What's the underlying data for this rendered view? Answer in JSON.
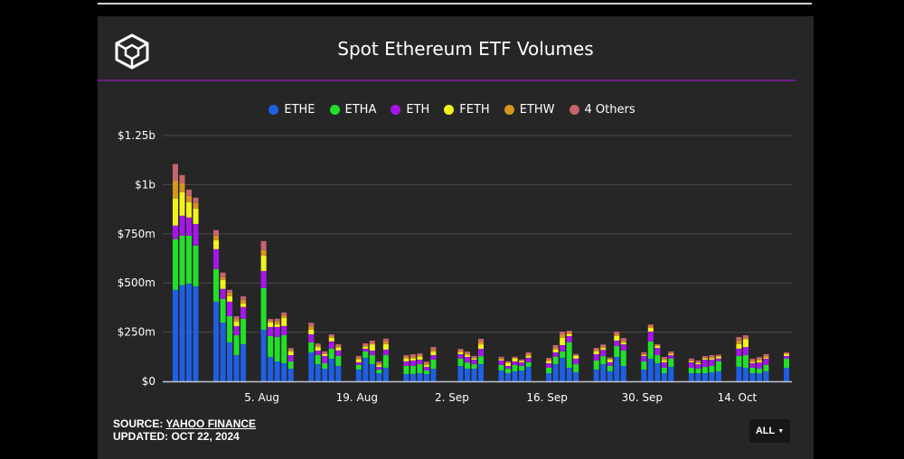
{
  "title": "Spot Ethereum ETF Volumes",
  "footer": {
    "source_label": "SOURCE:",
    "source_link": "YAHOO FINANCE",
    "updated": "UPDATED: OCT 22, 2024"
  },
  "range_button": {
    "label": "ALL",
    "icon": "caret-down-icon"
  },
  "logo": "cube-logo",
  "chart_data": {
    "type": "bar",
    "stacked": true,
    "title": "Spot Ethereum ETF Volumes",
    "legend_position": "top",
    "grid": true,
    "ylim": [
      0,
      1250
    ],
    "y_ticks": [
      {
        "value": 0,
        "label": "$0"
      },
      {
        "value": 250,
        "label": "$250m"
      },
      {
        "value": 500,
        "label": "$500m"
      },
      {
        "value": 750,
        "label": "$750m"
      },
      {
        "value": 1000,
        "label": "$1b"
      },
      {
        "value": 1250,
        "label": "$1.25b"
      }
    ],
    "x_ticks": [
      {
        "date": "2024-08-05",
        "label": "5. Aug"
      },
      {
        "date": "2024-08-19",
        "label": "19. Aug"
      },
      {
        "date": "2024-09-02",
        "label": "2. Sep"
      },
      {
        "date": "2024-09-16",
        "label": "16. Sep"
      },
      {
        "date": "2024-09-30",
        "label": "30. Sep"
      },
      {
        "date": "2024-10-14",
        "label": "14. Oct"
      }
    ],
    "x_range": [
      "2024-07-23",
      "2024-10-21"
    ],
    "dates": [
      "2024-07-23",
      "2024-07-24",
      "2024-07-25",
      "2024-07-26",
      "2024-07-29",
      "2024-07-30",
      "2024-07-31",
      "2024-08-01",
      "2024-08-02",
      "2024-08-05",
      "2024-08-06",
      "2024-08-07",
      "2024-08-08",
      "2024-08-09",
      "2024-08-12",
      "2024-08-13",
      "2024-08-14",
      "2024-08-15",
      "2024-08-16",
      "2024-08-19",
      "2024-08-20",
      "2024-08-21",
      "2024-08-22",
      "2024-08-23",
      "2024-08-26",
      "2024-08-27",
      "2024-08-28",
      "2024-08-29",
      "2024-08-30",
      "2024-09-03",
      "2024-09-04",
      "2024-09-05",
      "2024-09-06",
      "2024-09-09",
      "2024-09-10",
      "2024-09-11",
      "2024-09-12",
      "2024-09-13",
      "2024-09-16",
      "2024-09-17",
      "2024-09-18",
      "2024-09-19",
      "2024-09-20",
      "2024-09-23",
      "2024-09-24",
      "2024-09-25",
      "2024-09-26",
      "2024-09-27",
      "2024-09-30",
      "2024-10-01",
      "2024-10-02",
      "2024-10-03",
      "2024-10-04",
      "2024-10-07",
      "2024-10-08",
      "2024-10-09",
      "2024-10-10",
      "2024-10-11",
      "2024-10-14",
      "2024-10-15",
      "2024-10-16",
      "2024-10-17",
      "2024-10-18",
      "2024-10-21"
    ],
    "unit": "USD millions",
    "series": [
      {
        "name": "ETHE",
        "color": "#1f5fe0",
        "values": [
          465,
          488,
          497,
          483,
          405,
          299,
          198,
          133,
          189,
          262,
          124,
          101,
          92,
          64,
          147,
          87,
          64,
          115,
          78,
          60,
          120,
          87,
          41,
          69,
          37,
          37,
          41,
          37,
          64,
          78,
          64,
          64,
          87,
          55,
          41,
          51,
          55,
          74,
          41,
          87,
          120,
          69,
          46,
          60,
          87,
          51,
          124,
          78,
          60,
          115,
          92,
          41,
          74,
          41,
          41,
          41,
          46,
          51,
          74,
          69,
          41,
          41,
          51,
          69
        ]
      },
      {
        "name": "ETHA",
        "color": "#22e02a",
        "values": [
          258,
          253,
          244,
          207,
          166,
          120,
          133,
          101,
          129,
          212,
          106,
          124,
          143,
          37,
          51,
          46,
          28,
          51,
          51,
          23,
          32,
          46,
          18,
          64,
          41,
          41,
          46,
          18,
          46,
          37,
          32,
          23,
          41,
          28,
          23,
          32,
          23,
          23,
          28,
          37,
          32,
          129,
          41,
          46,
          41,
          28,
          55,
          78,
          41,
          87,
          41,
          28,
          41,
          28,
          23,
          32,
          32,
          51,
          55,
          64,
          28,
          23,
          32,
          46
        ]
      },
      {
        "name": "ETH",
        "color": "#a516e8",
        "values": [
          69,
          101,
          92,
          110,
          101,
          51,
          74,
          46,
          60,
          87,
          46,
          51,
          46,
          32,
          41,
          23,
          37,
          37,
          28,
          14,
          14,
          23,
          14,
          28,
          23,
          28,
          23,
          18,
          23,
          23,
          28,
          23,
          37,
          23,
          14,
          18,
          18,
          23,
          23,
          23,
          32,
          32,
          28,
          32,
          32,
          18,
          28,
          32,
          28,
          51,
          37,
          28,
          18,
          28,
          23,
          37,
          32,
          14,
          37,
          41,
          23,
          32,
          32,
          14
        ]
      },
      {
        "name": "FETH",
        "color": "#f2f21c",
        "values": [
          138,
          120,
          78,
          78,
          46,
          46,
          28,
          23,
          18,
          78,
          23,
          14,
          41,
          18,
          23,
          18,
          9,
          18,
          14,
          14,
          9,
          32,
          9,
          28,
          14,
          9,
          14,
          9,
          18,
          9,
          9,
          5,
          23,
          5,
          14,
          14,
          5,
          9,
          9,
          14,
          37,
          9,
          14,
          14,
          9,
          14,
          23,
          9,
          5,
          18,
          9,
          9,
          5,
          5,
          5,
          5,
          5,
          9,
          23,
          41,
          5,
          9,
          5,
          9
        ]
      },
      {
        "name": "ETHW",
        "color": "#d4961c",
        "values": [
          92,
          46,
          32,
          28,
          23,
          14,
          18,
          14,
          18,
          28,
          9,
          14,
          14,
          9,
          18,
          9,
          5,
          9,
          9,
          9,
          9,
          5,
          9,
          14,
          9,
          9,
          9,
          9,
          9,
          9,
          9,
          5,
          14,
          5,
          5,
          5,
          5,
          9,
          9,
          9,
          18,
          9,
          5,
          9,
          9,
          5,
          9,
          9,
          5,
          9,
          5,
          9,
          5,
          5,
          5,
          5,
          9,
          5,
          18,
          5,
          9,
          9,
          9,
          5
        ]
      },
      {
        "name": "4 Others",
        "color": "#c8646e",
        "values": [
          83,
          41,
          32,
          28,
          28,
          23,
          14,
          14,
          18,
          46,
          9,
          14,
          14,
          9,
          18,
          9,
          9,
          9,
          9,
          9,
          9,
          14,
          9,
          14,
          9,
          14,
          9,
          9,
          14,
          9,
          9,
          9,
          14,
          9,
          5,
          5,
          5,
          9,
          9,
          14,
          14,
          9,
          5,
          9,
          9,
          5,
          14,
          14,
          9,
          9,
          5,
          9,
          9,
          9,
          9,
          9,
          9,
          5,
          18,
          14,
          9,
          9,
          9,
          5
        ]
      }
    ]
  }
}
